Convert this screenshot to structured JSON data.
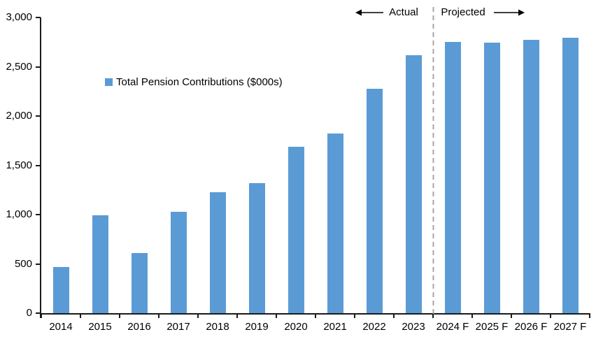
{
  "chart_data": {
    "type": "bar",
    "title": "",
    "legend": "Total Pension Contributions ($000s)",
    "categories": [
      "2014",
      "2015",
      "2016",
      "2017",
      "2018",
      "2019",
      "2020",
      "2021",
      "2022",
      "2023",
      "2024 F",
      "2025 F",
      "2026 F",
      "2027 F"
    ],
    "values": [
      470,
      990,
      610,
      1025,
      1230,
      1320,
      1685,
      1820,
      2280,
      2620,
      2755,
      2745,
      2770,
      2795
    ],
    "xlabel": "",
    "ylabel": "",
    "ylim": [
      0,
      3000
    ],
    "ytick_step": 500,
    "ytick_labels": [
      "0",
      "500",
      "1,000",
      "1,500",
      "2,000",
      "2,500",
      "3,000"
    ],
    "grid": false,
    "legend_position": "upper-left-inside",
    "annotations": {
      "actual_label": "Actual",
      "projected_label": "Projected"
    },
    "divider": {
      "between": [
        "2023",
        "2024 F"
      ],
      "style": "dashed"
    },
    "colors": {
      "bar": "#5B9BD5",
      "divider": "#A6A6A6",
      "axis": "#1a1a1a",
      "text": "#000000"
    }
  }
}
